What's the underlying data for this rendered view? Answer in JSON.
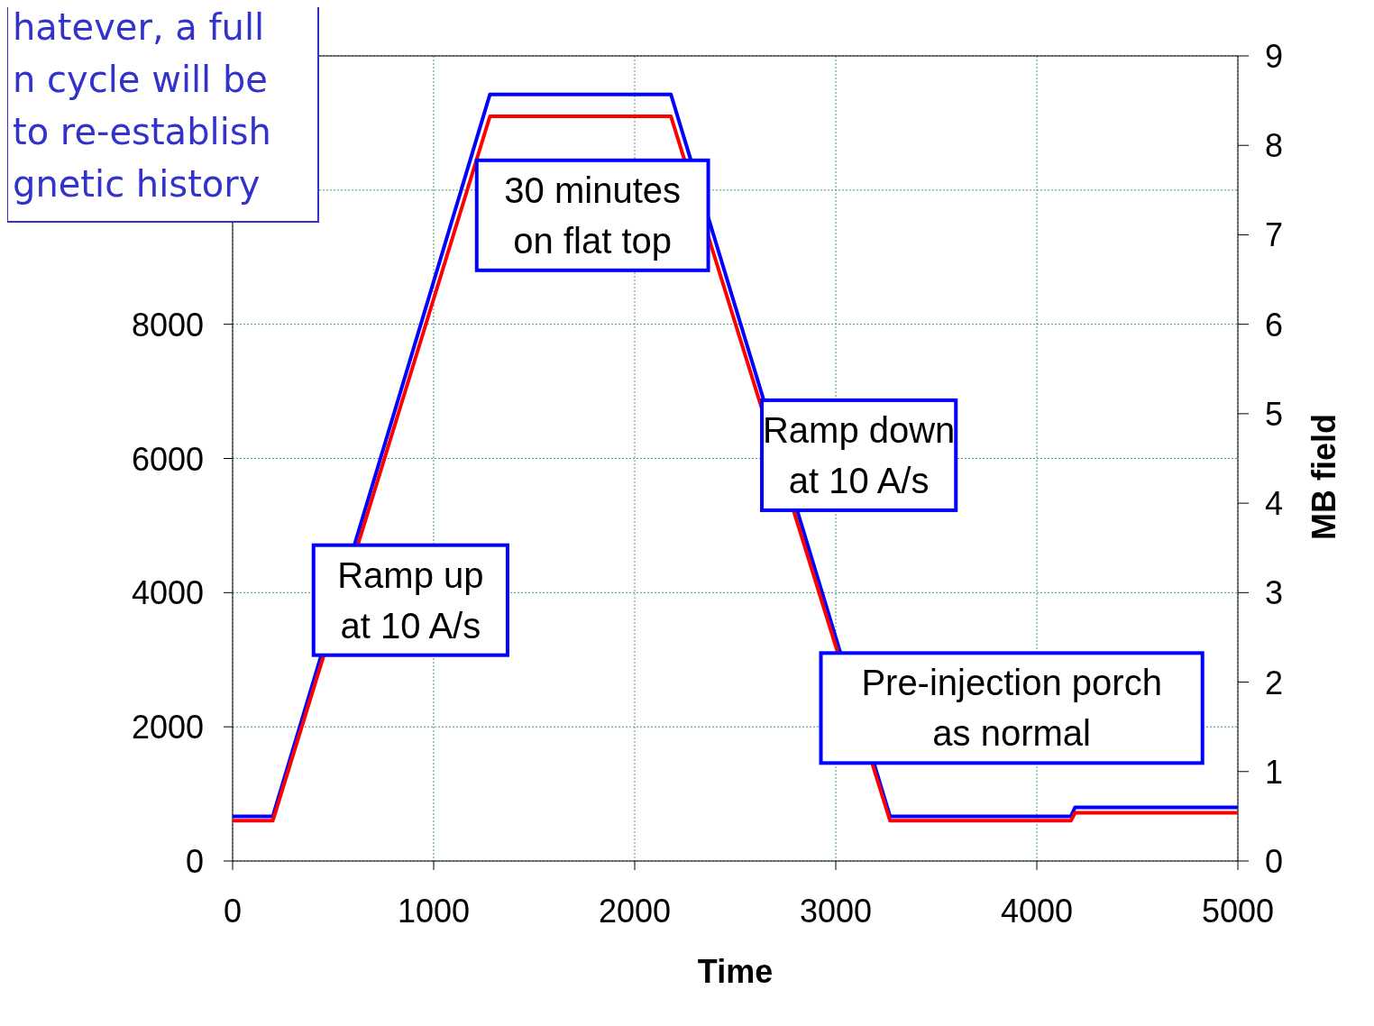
{
  "chart_data": {
    "type": "line",
    "xlabel": "Time",
    "y2label": "MB field",
    "xlim": [
      0,
      5000
    ],
    "xticks": [
      0,
      1000,
      2000,
      3000,
      4000,
      5000
    ],
    "ylim": [
      0,
      12000
    ],
    "yticks": [
      0,
      2000,
      4000,
      6000,
      8000,
      {
        "value": 10000,
        "label": null
      },
      {
        "value": 12000,
        "label": null
      }
    ],
    "y2lim": [
      0,
      9
    ],
    "y2ticks": [
      0,
      1,
      2,
      3,
      4,
      5,
      6,
      7,
      8,
      9
    ],
    "grid": true,
    "marker": "none",
    "line_style": "solid",
    "series": [
      {
        "color": "#0000ff",
        "axis": "y2",
        "x": [
          0,
          200,
          1280,
          2180,
          3270,
          4170,
          4190,
          5000
        ],
        "values": [
          0.5,
          0.5,
          8.57,
          8.57,
          0.5,
          0.5,
          0.6,
          0.6
        ]
      },
      {
        "color": "#ff0000",
        "x": [
          0,
          200,
          1280,
          2180,
          3270,
          4170,
          4190,
          5000
        ],
        "values": [
          600,
          600,
          11100,
          11100,
          600,
          600,
          720,
          720
        ]
      }
    ],
    "annotations": [
      "hatever, a full\nn cycle will be\nto re-establish\ngnetic history",
      "Ramp up\nat 10 A/s",
      "30 minutes\non flat top",
      "Ramp down\nat 10 A/s",
      "Pre-injection porch\nas normal"
    ]
  }
}
